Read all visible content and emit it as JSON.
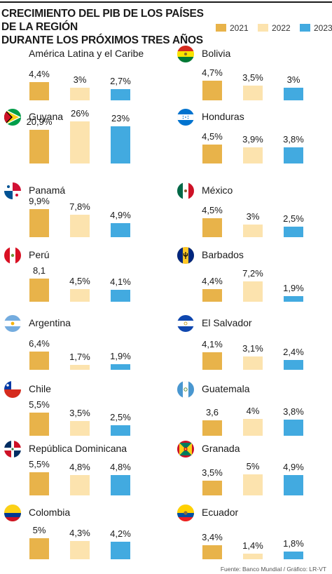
{
  "header": {
    "title_line1": "CRECIMIENTO DEL PIB DE LOS PAÍSES DE LA REGIÓN",
    "title_line2": "DURANTE LOS PRÓXIMOS TRES AÑOS"
  },
  "legend": [
    {
      "label": "2021",
      "color": "#E8B34A"
    },
    {
      "label": "2022",
      "color": "#FCE3AE"
    },
    {
      "label": "2023",
      "color": "#42AAE0"
    }
  ],
  "source": "Fuente: Banco Mundial / Gráfico: LR-VT",
  "chart_data": {
    "type": "bar",
    "title": "CRECIMIENTO DEL PIB DE LOS PAÍSES DE LA REGIÓN DURANTE LOS PRÓXIMOS TRES AÑOS",
    "series_names": [
      "2021",
      "2022",
      "2023"
    ],
    "panels": [
      {
        "country": "América Latina y el Caribe",
        "flag": "none",
        "values": [
          4.4,
          3,
          2.7
        ],
        "labels": [
          "4,4%",
          "3%",
          "2,7%"
        ]
      },
      {
        "country": "Guyana",
        "flag": "guyana-flag-icon",
        "values": [
          20.9,
          26,
          23
        ],
        "labels": [
          "20,9%",
          "26%",
          "23%"
        ]
      },
      {
        "country": "Panamá",
        "flag": "panama-flag-icon",
        "values": [
          9.9,
          7.8,
          4.9
        ],
        "labels": [
          "9,9%",
          "7,8%",
          "4,9%"
        ]
      },
      {
        "country": "Perú",
        "flag": "peru-flag-icon",
        "values": [
          8.1,
          4.5,
          4.1
        ],
        "labels": [
          "8,1",
          "4,5%",
          "4,1%"
        ]
      },
      {
        "country": "Argentina",
        "flag": "argentina-flag-icon",
        "values": [
          6.4,
          1.7,
          1.9
        ],
        "labels": [
          "6,4%",
          "1,7%",
          "1,9%"
        ]
      },
      {
        "country": "Chile",
        "flag": "chile-flag-icon",
        "values": [
          5.5,
          3.5,
          2.5
        ],
        "labels": [
          "5,5%",
          "3,5%",
          "2,5%"
        ]
      },
      {
        "country": "República Dominicana",
        "flag": "dominican-republic-flag-icon",
        "values": [
          5.5,
          4.8,
          4.8
        ],
        "labels": [
          "5,5%",
          "4,8%",
          "4,8%"
        ]
      },
      {
        "country": "Colombia",
        "flag": "colombia-flag-icon",
        "values": [
          5,
          4.3,
          4.2
        ],
        "labels": [
          "5%",
          "4,3%",
          "4,2%"
        ]
      },
      {
        "country": "Bolivia",
        "flag": "bolivia-flag-icon",
        "values": [
          4.7,
          3.5,
          3
        ],
        "labels": [
          "4,7%",
          "3,5%",
          "3%"
        ]
      },
      {
        "country": "Honduras",
        "flag": "honduras-flag-icon",
        "values": [
          4.5,
          3.9,
          3.8
        ],
        "labels": [
          "4,5%",
          "3,9%",
          "3,8%"
        ]
      },
      {
        "country": "México",
        "flag": "mexico-flag-icon",
        "values": [
          4.5,
          3,
          2.5
        ],
        "labels": [
          "4,5%",
          "3%",
          "2,5%"
        ]
      },
      {
        "country": "Barbados",
        "flag": "barbados-flag-icon",
        "values": [
          4.4,
          7.2,
          1.9
        ],
        "labels": [
          "4,4%",
          "7,2%",
          "1,9%"
        ]
      },
      {
        "country": "El Salvador",
        "flag": "el-salvador-flag-icon",
        "values": [
          4.1,
          3.1,
          2.4
        ],
        "labels": [
          "4,1%",
          "3,1%",
          "2,4%"
        ]
      },
      {
        "country": "Guatemala",
        "flag": "guatemala-flag-icon",
        "values": [
          3.6,
          4,
          3.8
        ],
        "labels": [
          "3,6",
          "4%",
          "3,8%"
        ]
      },
      {
        "country": "Granada",
        "flag": "grenada-flag-icon",
        "values": [
          3.5,
          5,
          4.9
        ],
        "labels": [
          "3,5%",
          "5%",
          "4,9%"
        ]
      },
      {
        "country": "Ecuador",
        "flag": "ecuador-flag-icon",
        "values": [
          3.4,
          1.4,
          1.8
        ],
        "labels": [
          "3,4%",
          "1,4%",
          "1,8%"
        ]
      }
    ]
  }
}
